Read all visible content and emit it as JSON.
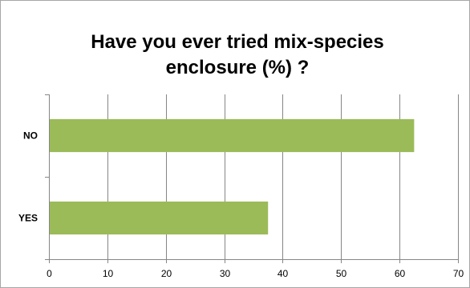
{
  "chart_data": {
    "type": "bar",
    "orientation": "horizontal",
    "title": "Have you ever tried mix-species enclosure (%) ?",
    "categories": [
      "NO",
      "YES"
    ],
    "values": [
      62.5,
      37.5
    ],
    "xlabel": "",
    "ylabel": "",
    "xlim": [
      0,
      70
    ],
    "xticks": [
      "0",
      "10",
      "20",
      "30",
      "40",
      "50",
      "60",
      "70"
    ],
    "grid": "vertical",
    "legend": "none",
    "bar_color": "#9bbb59"
  }
}
